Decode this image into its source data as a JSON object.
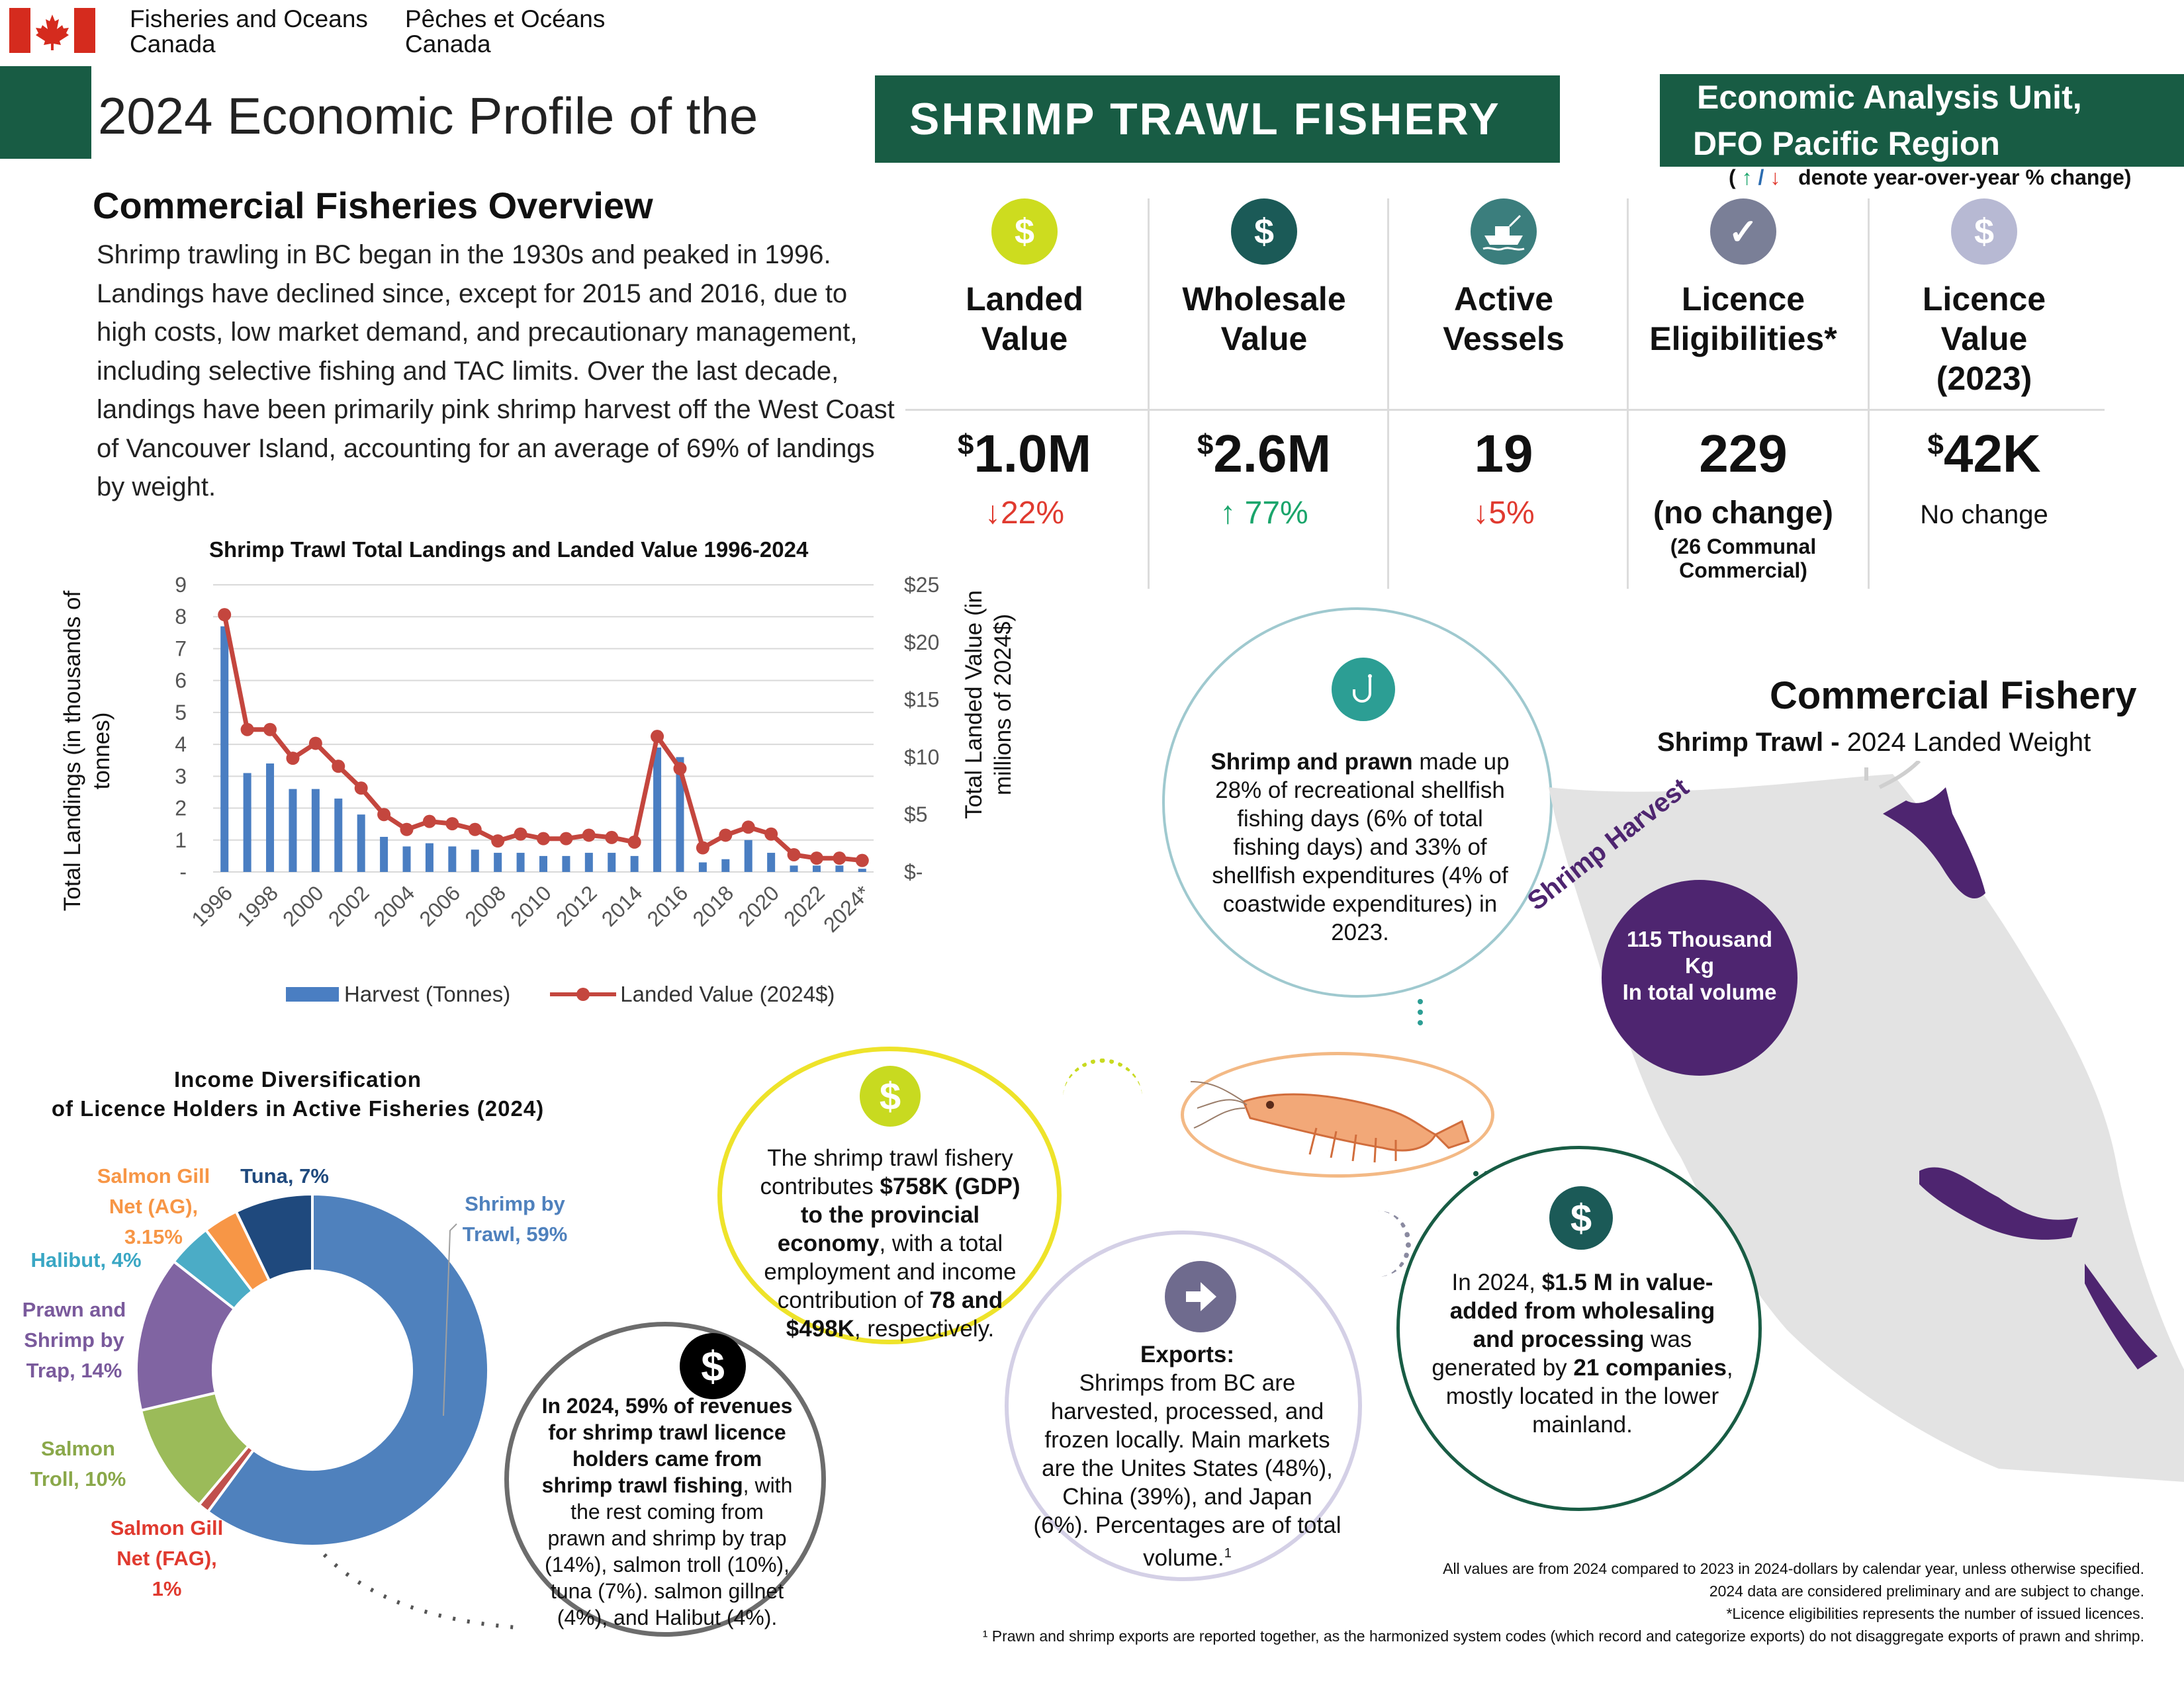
{
  "header": {
    "dept_en": "Fisheries and Oceans\nCanada",
    "dept_fr": "Pêches et Océans\nCanada",
    "title_prefix": "2024 Economic Profile of the",
    "title_fishery": "SHRIMP TRAWL FISHERY",
    "unit_line1": "Economic Analysis Unit,",
    "unit_line2": "DFO Pacific Region",
    "legend_note": "denote year-over-year  % change)",
    "legend_open": "(",
    "legend_up": "↑",
    "legend_slash": "/",
    "legend_down": "↓"
  },
  "overview": {
    "heading": "Commercial Fisheries Overview",
    "text": "Shrimp trawling in BC began in the 1930s and peaked in 1996. Landings have declined since, except for 2015 and 2016, due to high costs, low market demand, and precautionary management, including selective fishing and TAC limits. Over the last decade, landings have been primarily pink shrimp harvest off the West Coast of Vancouver Island, accounting for an average of 69% of landings by weight."
  },
  "kpis": [
    {
      "label": "Landed\nValue",
      "prefix": "$",
      "value": "1.0M",
      "change": "↓22%",
      "change_color": "#e03a2f",
      "icon": "dollar-icon",
      "icon_color": "#cddc1f",
      "icon_glyph": "$"
    },
    {
      "label": "Wholesale\nValue",
      "prefix": "$",
      "value": "2.6M",
      "change": "↑ 77%",
      "change_color": "#1aa56b",
      "icon": "dollar-icon",
      "icon_color": "#1b5a57",
      "icon_glyph": "$"
    },
    {
      "label": "Active\nVessels",
      "prefix": "",
      "value": "19",
      "change": "↓5%",
      "change_color": "#e03a2f",
      "icon": "boat-icon",
      "icon_color": "#3b7e7d",
      "icon_glyph": ""
    },
    {
      "label": "Licence\nEligibilities*",
      "prefix": "",
      "value": "229",
      "change": "(no change)",
      "change_sub": "(26  Communal\nCommercial)",
      "change_color": "#111111",
      "icon": "check-icon",
      "icon_color": "#7a7f97",
      "icon_glyph": "✓"
    },
    {
      "label": "Licence\nValue\n(2023)",
      "prefix": "$",
      "value": "42K",
      "change": "No change",
      "change_color": "#111111",
      "icon": "dollar-icon",
      "icon_color": "#b7b9d3",
      "icon_glyph": "$"
    }
  ],
  "chart_data": [
    {
      "type": "bar+line",
      "title": "Shrimp Trawl Total Landings and Landed Value 1996-2024",
      "ylabel": "Total Landings (in thousands of tonnes)",
      "y2label": "Total Landed Value (in millions of 2024$)",
      "ylim": [
        0,
        9
      ],
      "y2lim": [
        0,
        25
      ],
      "yticks": [
        "-",
        "1",
        "2",
        "3",
        "4",
        "5",
        "6",
        "7",
        "8",
        "9"
      ],
      "y2ticks": [
        "$-",
        "$5",
        "$10",
        "$15",
        "$20",
        "$25"
      ],
      "xticks": [
        "1996",
        "1998",
        "2000",
        "2002",
        "2004",
        "2006",
        "2008",
        "2010",
        "2012",
        "2014",
        "2016",
        "2018",
        "2020",
        "2022",
        "2024*"
      ],
      "x": [
        "1996",
        "1997",
        "1998",
        "1999",
        "2000",
        "2001",
        "2002",
        "2003",
        "2004",
        "2005",
        "2006",
        "2007",
        "2008",
        "2009",
        "2010",
        "2011",
        "2012",
        "2013",
        "2014",
        "2015",
        "2016",
        "2017",
        "2018",
        "2019",
        "2020",
        "2021",
        "2022",
        "2023",
        "2024"
      ],
      "series": [
        {
          "name": "Harvest (Tonnes)",
          "kind": "bar",
          "color": "#4a7ec2",
          "axis": "left",
          "values": [
            7.7,
            3.1,
            3.4,
            2.6,
            2.6,
            2.3,
            1.8,
            1.1,
            0.8,
            0.9,
            0.8,
            0.7,
            0.6,
            0.6,
            0.5,
            0.5,
            0.6,
            0.6,
            0.5,
            3.9,
            3.6,
            0.3,
            0.4,
            1.0,
            0.6,
            0.2,
            0.2,
            0.2,
            0.1
          ]
        },
        {
          "name": "Landed Value (2024$)",
          "kind": "line",
          "color": "#c4463e",
          "axis": "right",
          "values": [
            22.4,
            12.4,
            12.4,
            9.9,
            11.2,
            9.2,
            7.3,
            5.0,
            3.7,
            4.4,
            4.2,
            3.7,
            2.7,
            3.3,
            2.9,
            2.9,
            3.2,
            3.0,
            2.6,
            11.8,
            9.0,
            2.1,
            3.2,
            3.9,
            3.3,
            1.5,
            1.2,
            1.2,
            1.0
          ]
        }
      ]
    },
    {
      "type": "pie",
      "title": "Income Diversification\nof Licence Holders in Active Fisheries (2024)",
      "categories": [
        "Shrimp by Trawl",
        "Salmon Gill Net (FAG)",
        "Salmon Troll",
        "Prawn and Shrimp by Trap",
        "Halibut",
        "Salmon Gill Net (AG)",
        "Tuna"
      ],
      "labels": [
        "Shrimp by\nTrawl, 59%",
        "Salmon Gill\nNet (FAG),\n1%",
        "Salmon\nTroll, 10%",
        "Prawn and\nShrimp by\nTrap, 14%",
        "Halibut, 4%",
        "Salmon Gill\nNet (AG),\n3.15%",
        "Tuna, 7%"
      ],
      "values": [
        59,
        1,
        10,
        14,
        4,
        3.15,
        7
      ],
      "colors": [
        "#4f81bd",
        "#c0504d",
        "#9bbb59",
        "#8064a2",
        "#4bacc6",
        "#f79646",
        "#1f497d"
      ]
    }
  ],
  "chart_legend": {
    "harvest": "Harvest (Tonnes)",
    "value": "Landed Value (2024$)"
  },
  "rec_circle": {
    "bold": "Shrimp and prawn",
    "text": " made up 28% of recreational shellfish fishing days (6% of total fishing days) and 33% of shellfish expenditures (4% of coastwide expenditures) in 2023."
  },
  "map": {
    "title": "Commercial Fishery",
    "subtitle_bold": "Shrimp Trawl - ",
    "subtitle": "2024 Landed Weight",
    "harvest_label": "Shrimp Harvest",
    "volume": "115 Thousand\nKg\nIn total volume"
  },
  "gdp_circle": {
    "t1": "The shrimp trawl fishery contributes ",
    "b1": "$758K (GDP) to the provincial economy",
    "t2": ", with a total employment and income contribution of ",
    "b2": "78 and $498K",
    "t3": ", respectively."
  },
  "revenue_circle": {
    "bold": "In 2024, 59% of revenues for shrimp trawl licence holders came from shrimp trawl fishing",
    "text": ", with the rest coming from prawn and shrimp by trap (14%), salmon troll (10%), tuna (7%). salmon gillnet (4%), and Halibut (4%)."
  },
  "exports_circle": {
    "heading": "Exports:",
    "text": "Shrimps from BC are harvested, processed, and frozen locally. Main markets are the Unites States (48%), China (39%), and Japan (6%). Percentages are of total volume.",
    "sup": "1"
  },
  "value_added_circle": {
    "t1": "In 2024, ",
    "b1": "$1.5 M in value-added from wholesaling and processing",
    "t2": " was generated by ",
    "b2": "21 companies",
    "t3": ", mostly located in the lower mainland."
  },
  "footnotes": [
    "All values are from 2024 compared to 2023 in 2024-dollars by calendar year, unless otherwise specified.",
    "2024 data are considered  preliminary and are subject to change.",
    "*Licence eligibilities represents the number of issued licences.",
    "¹ Prawn and shrimp exports are reported together, as the harmonized system codes (which record and categorize exports) do not disaggregate exports of prawn and shrimp."
  ]
}
